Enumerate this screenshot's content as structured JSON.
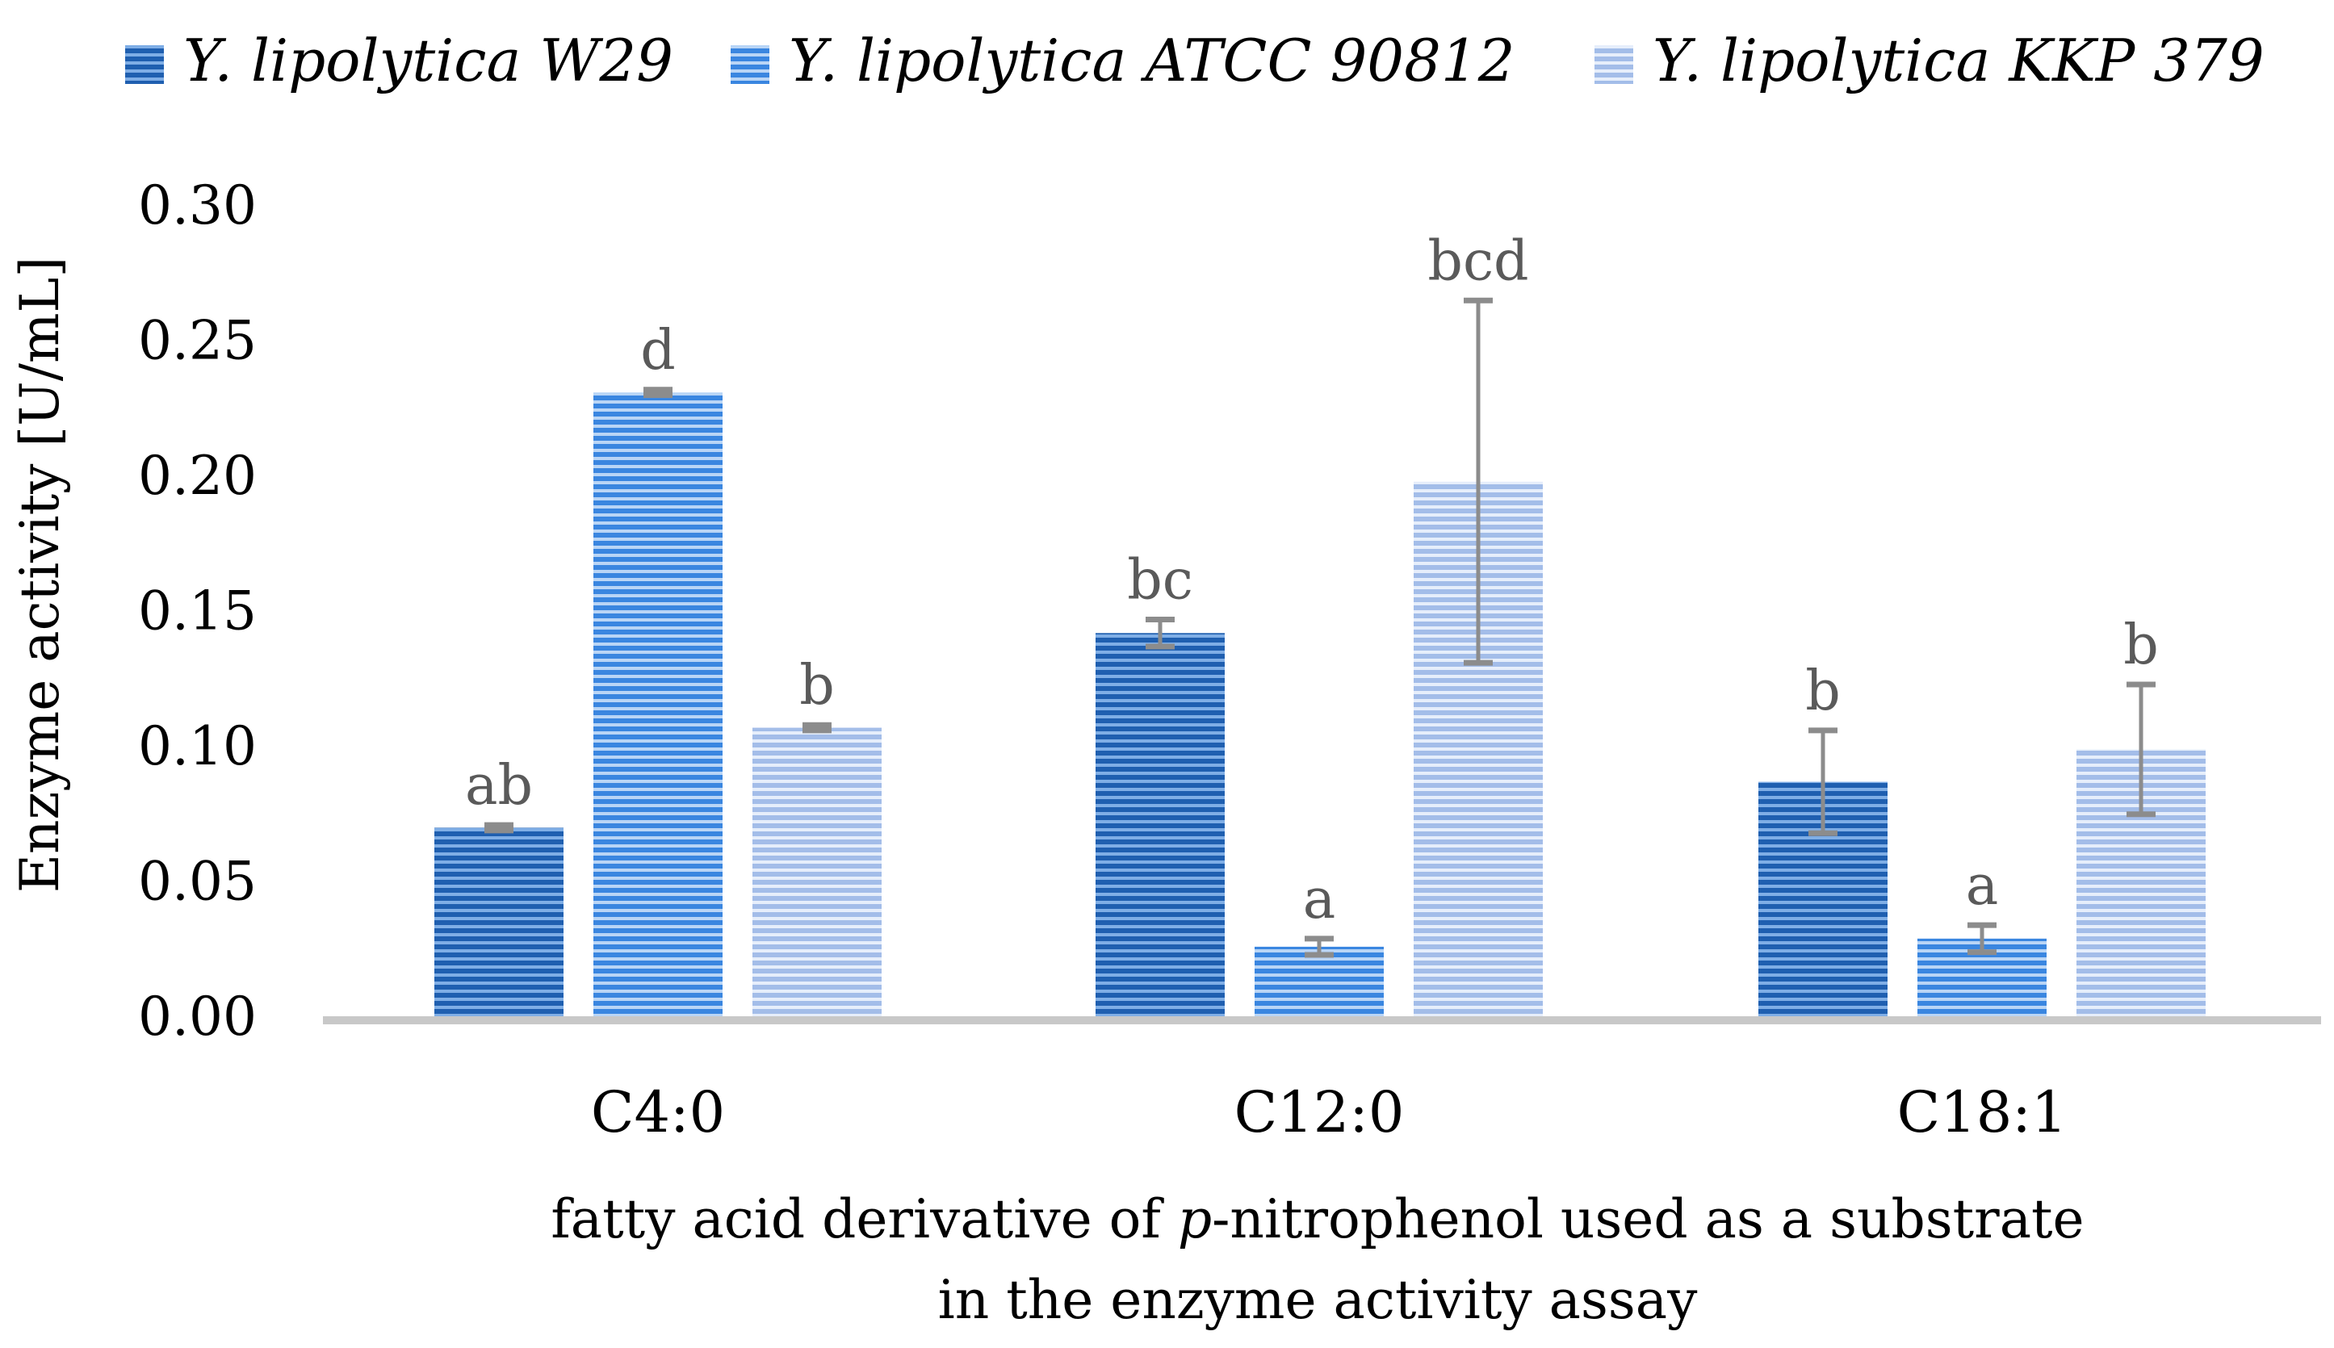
{
  "chart_data": {
    "type": "bar",
    "categories": [
      "C4:0",
      "C12:0",
      "C18:1"
    ],
    "series": [
      {
        "name": "Y. lipolytica W29",
        "values": [
          0.07,
          0.142,
          0.087
        ],
        "errors": [
          0.001,
          0.005,
          0.019
        ],
        "labels": [
          "ab",
          "bc",
          "b"
        ],
        "color": "#1f5fb0"
      },
      {
        "name": "Y. lipolytica ATCC 90812",
        "values": [
          0.231,
          0.026,
          0.029
        ],
        "errors": [
          0.001,
          0.003,
          0.005
        ],
        "labels": [
          "d",
          "a",
          "a"
        ],
        "color": "#3a86e0"
      },
      {
        "name": "Y. lipolytica KKP 379",
        "values": [
          0.107,
          0.198,
          0.099
        ],
        "errors": [
          0.001,
          0.067,
          0.024
        ],
        "labels": [
          "b",
          "bcd",
          "b"
        ],
        "color": "#a9c1ea"
      }
    ],
    "yticks": [
      "0.00",
      "0.05",
      "0.10",
      "0.15",
      "0.20",
      "0.25",
      "0.30"
    ],
    "ylim": [
      0,
      0.3
    ],
    "ylabel": "Enzyme activity  [U/mL]",
    "xlabel_line1_pre": "fatty acid derivative of ",
    "xlabel_line1_italic": "p",
    "xlabel_line1_post": "-nitrophenol used as a substrate",
    "xlabel_line2": "in the enzyme activity assay",
    "legend_position": "top",
    "grid": false
  }
}
